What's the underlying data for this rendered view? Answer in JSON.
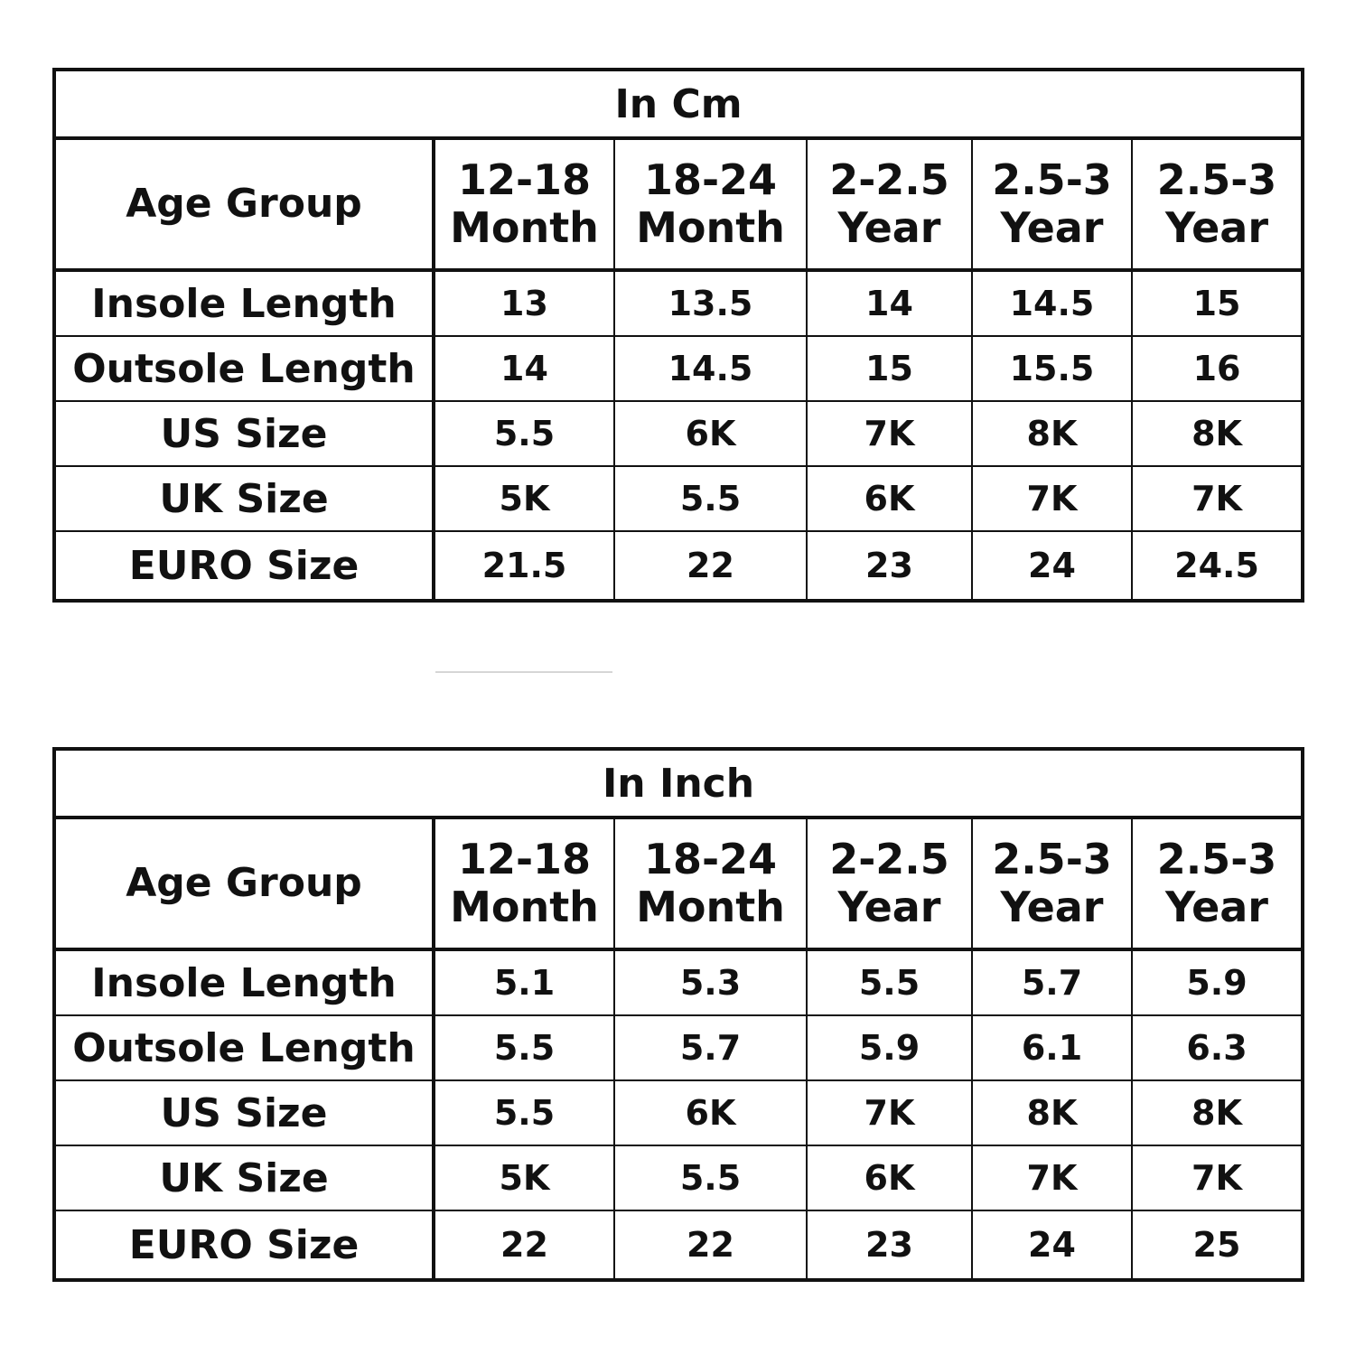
{
  "tables": [
    {
      "title": "In Cm",
      "row_label_header": "Age Group",
      "age_groups": [
        {
          "range": "12-18",
          "unit": "Month"
        },
        {
          "range": "18-24",
          "unit": "Month"
        },
        {
          "range": "2-2.5",
          "unit": "Year"
        },
        {
          "range": "2.5-3",
          "unit": "Year"
        },
        {
          "range": "2.5-3",
          "unit": "Year"
        }
      ],
      "rows": [
        {
          "label": "Insole Length",
          "values": [
            "13",
            "13.5",
            "14",
            "14.5",
            "15"
          ]
        },
        {
          "label": "Outsole Length",
          "values": [
            "14",
            "14.5",
            "15",
            "15.5",
            "16"
          ]
        },
        {
          "label": "US Size",
          "values": [
            "5.5",
            "6K",
            "7K",
            "8K",
            "8K"
          ]
        },
        {
          "label": "UK Size",
          "values": [
            "5K",
            "5.5",
            "6K",
            "7K",
            "7K"
          ]
        },
        {
          "label": "EURO Size",
          "values": [
            "21.5",
            "22",
            "23",
            "24",
            "24.5"
          ]
        }
      ]
    },
    {
      "title": "In Inch",
      "row_label_header": "Age Group",
      "age_groups": [
        {
          "range": "12-18",
          "unit": "Month"
        },
        {
          "range": "18-24",
          "unit": "Month"
        },
        {
          "range": "2-2.5",
          "unit": "Year"
        },
        {
          "range": "2.5-3",
          "unit": "Year"
        },
        {
          "range": "2.5-3",
          "unit": "Year"
        }
      ],
      "rows": [
        {
          "label": "Insole Length",
          "values": [
            "5.1",
            "5.3",
            "5.5",
            "5.7",
            "5.9"
          ]
        },
        {
          "label": "Outsole Length",
          "values": [
            "5.5",
            "5.7",
            "5.9",
            "6.1",
            "6.3"
          ]
        },
        {
          "label": "US Size",
          "values": [
            "5.5",
            "6K",
            "7K",
            "8K",
            "8K"
          ]
        },
        {
          "label": "UK Size",
          "values": [
            "5K",
            "5.5",
            "6K",
            "7K",
            "7K"
          ]
        },
        {
          "label": "EURO Size",
          "values": [
            "22",
            "22",
            "23",
            "24",
            "25"
          ]
        }
      ]
    }
  ]
}
